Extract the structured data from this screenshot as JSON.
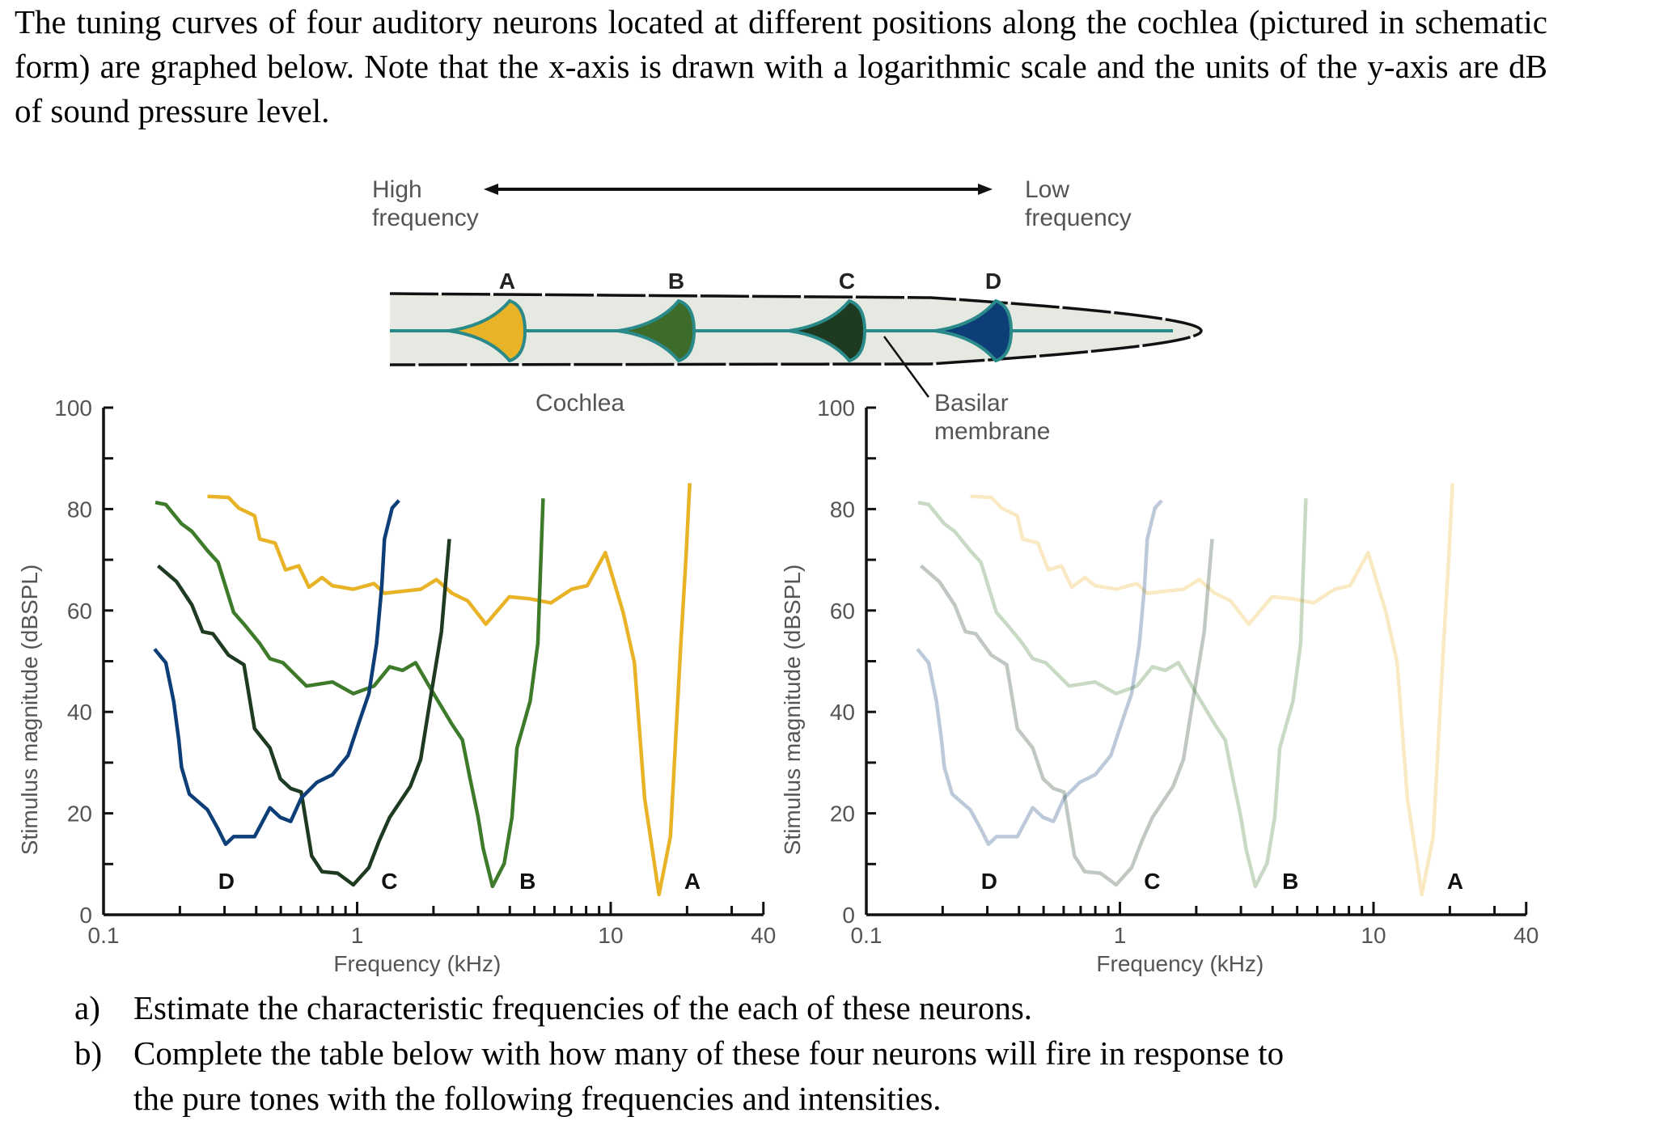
{
  "intro": "The tuning curves of four auditory neurons located at different positions along the cochlea (pictured in schematic form) are graphed below. Note that the x-axis is drawn with a logarithmic scale and the units of the y-axis are dB of sound pressure level.",
  "diagram": {
    "high_line1": "High",
    "high_line2": "frequency",
    "low_line1": "Low",
    "low_line2": "frequency",
    "neurons": [
      {
        "label": "A",
        "color": "#e8b327"
      },
      {
        "label": "B",
        "color": "#3d6b2a"
      },
      {
        "label": "C",
        "color": "#1e3a20"
      },
      {
        "label": "D",
        "color": "#0e3e78"
      }
    ],
    "cochlea_label": "Cochlea",
    "basilar_line1": "Basilar",
    "basilar_line2": "membrane",
    "tube_color": "#e6e8e2",
    "membrane_color": "#2a8a8a"
  },
  "questions": {
    "a_marker": "a)",
    "a_text": "Estimate the characteristic frequencies of the each of these neurons.",
    "b_marker": "b)",
    "b_line1": "Complete the table below with how many of these four neurons will fire in response to",
    "b_line2": "the pure tones with the following frequencies and intensities."
  },
  "chart_data": [
    {
      "type": "line",
      "xlabel": "Frequency (kHz)",
      "ylabel": "Stimulus magnitude (dBSPL)",
      "xscale": "log",
      "xlim": [
        0.1,
        40
      ],
      "ylim": [
        0,
        100
      ],
      "xticklabels": [
        "0.1",
        "1",
        "10",
        "40"
      ],
      "yticklabels": [
        "0",
        "20",
        "40",
        "60",
        "80",
        "100"
      ],
      "opacity": 1,
      "series": [
        {
          "name": "A",
          "color": "#e8b327",
          "label_at": [
            21,
            6.7
          ],
          "x": [
            0.257,
            0.311,
            0.341,
            0.394,
            0.413,
            0.475,
            0.522,
            0.588,
            0.646,
            0.727,
            0.799,
            0.966,
            1.166,
            1.282,
            1.783,
            2.055,
            2.367,
            2.73,
            3.22,
            3.98,
            4.81,
            5.81,
            7.02,
            8.09,
            9.53,
            11.2,
            12.4,
            13.6,
            15.5,
            17.2,
            18.9,
            19.8,
            20.5
          ],
          "y": [
            82.5,
            82.3,
            80.2,
            78.7,
            74.1,
            73.3,
            68.0,
            68.8,
            64.6,
            66.5,
            64.9,
            64.2,
            65.3,
            63.4,
            64.2,
            66.1,
            63.4,
            61.9,
            57.3,
            62.7,
            62.3,
            61.5,
            64.2,
            64.9,
            71.4,
            59.6,
            49.7,
            23.0,
            4.0,
            15.4,
            53.5,
            70.3,
            85.1
          ]
        },
        {
          "name": "B",
          "color": "#3d7a2a",
          "label_at": [
            4.7,
            6.7
          ],
          "x": [
            0.16,
            0.176,
            0.203,
            0.223,
            0.257,
            0.283,
            0.326,
            0.358,
            0.413,
            0.453,
            0.51,
            0.631,
            0.799,
            0.966,
            1.166,
            1.343,
            1.511,
            1.701,
            1.96,
            2.37,
            2.6,
            2.79,
            3.0,
            3.14,
            3.42,
            3.8,
            4.08,
            4.27,
            4.81,
            5.16,
            5.41
          ],
          "y": [
            81.3,
            80.9,
            77.1,
            75.6,
            71.8,
            69.5,
            59.6,
            57.3,
            53.5,
            50.5,
            49.7,
            45.1,
            45.9,
            43.6,
            45.1,
            48.9,
            48.2,
            49.7,
            44.4,
            37.5,
            34.5,
            26.8,
            19.2,
            13.1,
            5.6,
            10.1,
            19.2,
            32.9,
            42.1,
            53.5,
            82.1
          ]
        },
        {
          "name": "C",
          "color": "#1e3a20",
          "label_at": [
            1.34,
            6.7
          ],
          "x": [
            0.164,
            0.194,
            0.223,
            0.246,
            0.27,
            0.311,
            0.358,
            0.394,
            0.453,
            0.498,
            0.547,
            0.602,
            0.662,
            0.727,
            0.837,
            0.966,
            1.112,
            1.222,
            1.343,
            1.62,
            1.78,
            1.96,
            2.15,
            2.31
          ],
          "y": [
            68.8,
            65.7,
            61.1,
            55.8,
            55.4,
            51.2,
            49.3,
            36.7,
            32.9,
            26.8,
            24.9,
            24.2,
            11.6,
            8.5,
            8.2,
            5.9,
            9.3,
            14.6,
            19.2,
            25.3,
            30.6,
            43.6,
            55.8,
            74.1
          ]
        },
        {
          "name": "D",
          "color": "#0e3e78",
          "label_at": [
            0.305,
            6.7
          ],
          "x": [
            0.159,
            0.176,
            0.189,
            0.198,
            0.203,
            0.218,
            0.257,
            0.283,
            0.303,
            0.326,
            0.394,
            0.453,
            0.498,
            0.547,
            0.602,
            0.693,
            0.799,
            0.921,
            1.01,
            1.112,
            1.194,
            1.251,
            1.282,
            1.374,
            1.462
          ],
          "y": [
            52.4,
            49.7,
            42.1,
            34.5,
            29.1,
            23.8,
            20.7,
            16.9,
            13.9,
            15.4,
            15.4,
            21.1,
            19.2,
            18.4,
            23.0,
            26.1,
            27.6,
            31.4,
            37.5,
            43.6,
            53.5,
            64.9,
            74.1,
            80.2,
            81.7
          ]
        }
      ]
    },
    {
      "type": "line",
      "xlabel": "Frequency (kHz)",
      "ylabel": "Stimulus magnitude (dBSPL)",
      "xscale": "log",
      "xlim": [
        0.1,
        40
      ],
      "ylim": [
        0,
        100
      ],
      "xticklabels": [
        "0.1",
        "1",
        "10",
        "40"
      ],
      "yticklabels": [
        "0",
        "20",
        "40",
        "60",
        "80",
        "100"
      ],
      "opacity": 0.28,
      "series": [
        {
          "name": "A",
          "color": "#e8b327",
          "label_at": [
            21,
            6.7
          ],
          "x": [
            0.257,
            0.311,
            0.341,
            0.394,
            0.413,
            0.475,
            0.522,
            0.588,
            0.646,
            0.727,
            0.799,
            0.966,
            1.166,
            1.282,
            1.783,
            2.055,
            2.367,
            2.73,
            3.22,
            3.98,
            4.81,
            5.81,
            7.02,
            8.09,
            9.53,
            11.2,
            12.4,
            13.6,
            15.5,
            17.2,
            18.9,
            19.8,
            20.5
          ],
          "y": [
            82.5,
            82.3,
            80.2,
            78.7,
            74.1,
            73.3,
            68.0,
            68.8,
            64.6,
            66.5,
            64.9,
            64.2,
            65.3,
            63.4,
            64.2,
            66.1,
            63.4,
            61.9,
            57.3,
            62.7,
            62.3,
            61.5,
            64.2,
            64.9,
            71.4,
            59.6,
            49.7,
            23.0,
            4.0,
            15.4,
            53.5,
            70.3,
            85.1
          ]
        },
        {
          "name": "B",
          "color": "#3d7a2a",
          "label_at": [
            4.7,
            6.7
          ],
          "x": [
            0.16,
            0.176,
            0.203,
            0.223,
            0.257,
            0.283,
            0.326,
            0.358,
            0.413,
            0.453,
            0.51,
            0.631,
            0.799,
            0.966,
            1.166,
            1.343,
            1.511,
            1.701,
            1.96,
            2.37,
            2.6,
            2.79,
            3.0,
            3.14,
            3.42,
            3.8,
            4.08,
            4.27,
            4.81,
            5.16,
            5.41
          ],
          "y": [
            81.3,
            80.9,
            77.1,
            75.6,
            71.8,
            69.5,
            59.6,
            57.3,
            53.5,
            50.5,
            49.7,
            45.1,
            45.9,
            43.6,
            45.1,
            48.9,
            48.2,
            49.7,
            44.4,
            37.5,
            34.5,
            26.8,
            19.2,
            13.1,
            5.6,
            10.1,
            19.2,
            32.9,
            42.1,
            53.5,
            82.1
          ]
        },
        {
          "name": "C",
          "color": "#1e3a20",
          "label_at": [
            1.34,
            6.7
          ],
          "x": [
            0.164,
            0.194,
            0.223,
            0.246,
            0.27,
            0.311,
            0.358,
            0.394,
            0.453,
            0.498,
            0.547,
            0.602,
            0.662,
            0.727,
            0.837,
            0.966,
            1.112,
            1.222,
            1.343,
            1.62,
            1.78,
            1.96,
            2.15,
            2.31
          ],
          "y": [
            68.8,
            65.7,
            61.1,
            55.8,
            55.4,
            51.2,
            49.3,
            36.7,
            32.9,
            26.8,
            24.9,
            24.2,
            11.6,
            8.5,
            8.2,
            5.9,
            9.3,
            14.6,
            19.2,
            25.3,
            30.6,
            43.6,
            55.8,
            74.1
          ]
        },
        {
          "name": "D",
          "color": "#0e3e78",
          "label_at": [
            0.305,
            6.7
          ],
          "x": [
            0.159,
            0.176,
            0.189,
            0.198,
            0.203,
            0.218,
            0.257,
            0.283,
            0.303,
            0.326,
            0.394,
            0.453,
            0.498,
            0.547,
            0.602,
            0.693,
            0.799,
            0.921,
            1.01,
            1.112,
            1.194,
            1.251,
            1.282,
            1.374,
            1.462
          ],
          "y": [
            52.4,
            49.7,
            42.1,
            34.5,
            29.1,
            23.8,
            20.7,
            16.9,
            13.9,
            15.4,
            15.4,
            21.1,
            19.2,
            18.4,
            23.0,
            26.1,
            27.6,
            31.4,
            37.5,
            43.6,
            53.5,
            64.9,
            74.1,
            80.2,
            81.7
          ]
        }
      ]
    }
  ]
}
